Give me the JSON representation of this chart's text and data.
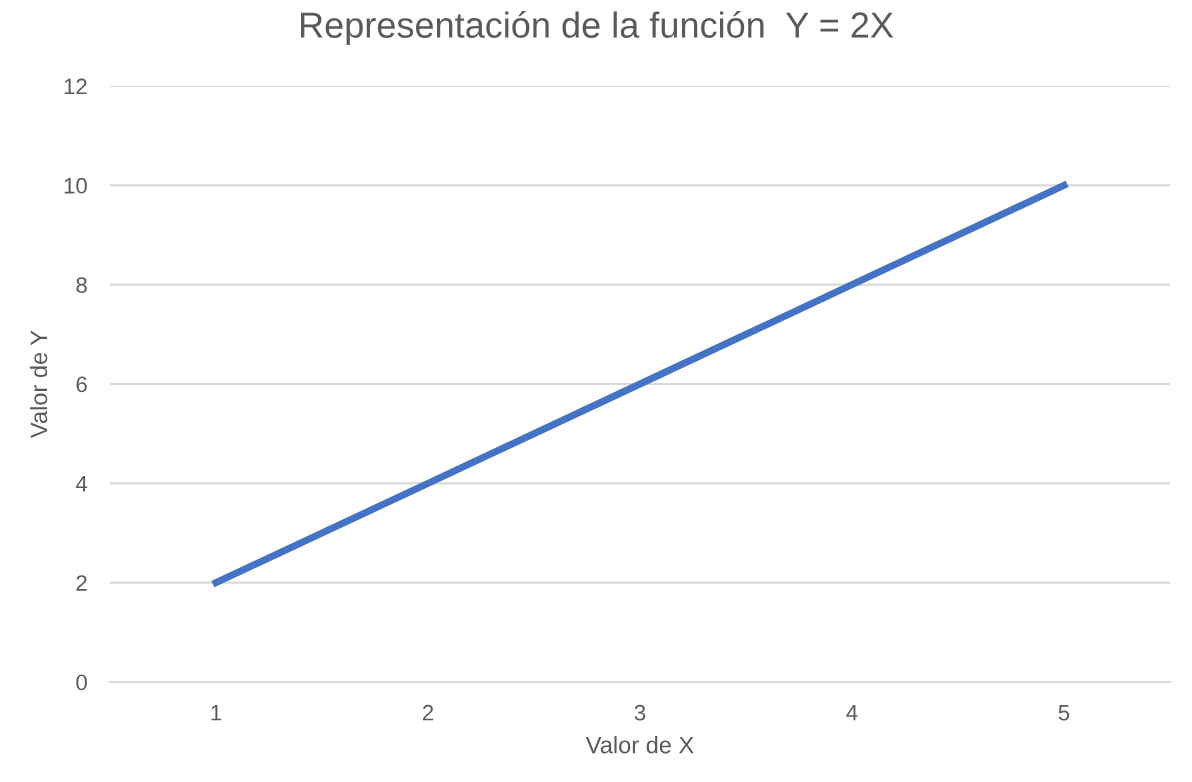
{
  "chart_data": {
    "type": "line",
    "title": "Representación de la función  Y = 2X",
    "xlabel": "Valor de X",
    "ylabel": "Valor de Y",
    "categories": [
      "1",
      "2",
      "3",
      "4",
      "5"
    ],
    "series": [
      {
        "color": "#4472c4",
        "values": [
          2,
          4,
          6,
          8,
          10
        ]
      }
    ],
    "ylim": [
      0,
      12
    ],
    "yticks": [
      0,
      2,
      4,
      6,
      8,
      10,
      12
    ],
    "grid": "y",
    "legend": false,
    "marker": "none",
    "line_style": "solid"
  }
}
